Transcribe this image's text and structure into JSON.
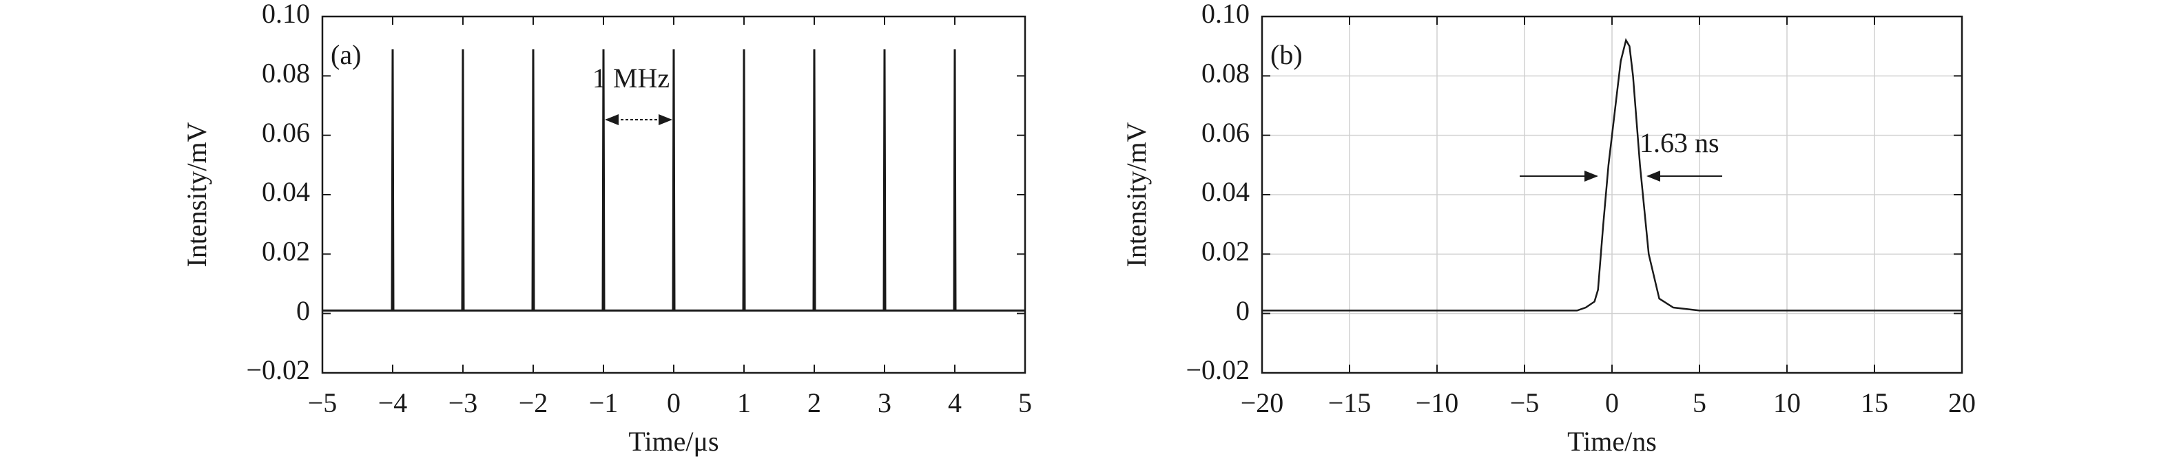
{
  "chart_data": [
    {
      "type": "line",
      "panel_label": "(a)",
      "x_label": "Time/μs",
      "y_label": "Intensity/mV",
      "annotation": "1 MHz",
      "grid": false,
      "x": [
        -5,
        -4.01,
        -4,
        -3.99,
        -3.01,
        -3,
        -2.99,
        -2.01,
        -2,
        -1.99,
        -1.01,
        -1,
        -0.99,
        -0.01,
        0,
        0.01,
        0.99,
        1,
        1.01,
        1.99,
        2,
        2.01,
        2.99,
        3,
        3.01,
        3.99,
        4,
        4.01,
        5
      ],
      "series": [
        {
          "color": "#1a1a1a",
          "values": [
            0.001,
            0.001,
            0.089,
            0.001,
            0.001,
            0.089,
            0.001,
            0.001,
            0.089,
            0.001,
            0.001,
            0.089,
            0.001,
            0.001,
            0.089,
            0.001,
            0.001,
            0.089,
            0.001,
            0.001,
            0.089,
            0.001,
            0.001,
            0.089,
            0.001,
            0.001,
            0.089,
            0.001,
            0.001
          ]
        }
      ],
      "xlim": [
        -5,
        5
      ],
      "xticks": [
        {
          "value": -5,
          "label": "−5"
        },
        {
          "value": -4,
          "label": "−4"
        },
        {
          "value": -3,
          "label": "−3"
        },
        {
          "value": -2,
          "label": "−2"
        },
        {
          "value": -1,
          "label": "−1"
        },
        0,
        1,
        2,
        3,
        4,
        5
      ],
      "ylim": [
        -0.02,
        0.1
      ],
      "yticks": [
        {
          "value": -0.02,
          "label": "−0.02"
        },
        0,
        0.02,
        0.04,
        0.06,
        0.08,
        {
          "value": 0.1,
          "label": "0.10"
        }
      ]
    },
    {
      "type": "line",
      "panel_label": "(b)",
      "x_label": "Time/ns",
      "y_label": "Intensity/mV",
      "annotation": "1.63 ns",
      "grid": true,
      "x": [
        -20,
        -15,
        -10,
        -5,
        -2,
        -1.5,
        -1,
        -0.8,
        -0.5,
        -0.2,
        0,
        0.3,
        0.5,
        0.8,
        1.0,
        1.2,
        1.6,
        2.1,
        2.7,
        3.5,
        5,
        10,
        15,
        20
      ],
      "series": [
        {
          "color": "#1a1a1a",
          "values": [
            0.001,
            0.001,
            0.001,
            0.001,
            0.001,
            0.002,
            0.004,
            0.008,
            0.03,
            0.05,
            0.06,
            0.075,
            0.085,
            0.092,
            0.09,
            0.08,
            0.05,
            0.02,
            0.005,
            0.002,
            0.001,
            0.001,
            0.001,
            0.001
          ]
        }
      ],
      "xlim": [
        -20,
        20
      ],
      "xticks": [
        {
          "value": -20,
          "label": "−20"
        },
        {
          "value": -15,
          "label": "−15"
        },
        {
          "value": -10,
          "label": "−10"
        },
        {
          "value": -5,
          "label": "−5"
        },
        0,
        5,
        10,
        15,
        20
      ],
      "ylim": [
        -0.02,
        0.1
      ],
      "yticks": [
        {
          "value": -0.02,
          "label": "−0.02"
        },
        0,
        0.02,
        0.04,
        0.06,
        0.08,
        {
          "value": 0.1,
          "label": "0.10"
        }
      ]
    }
  ]
}
